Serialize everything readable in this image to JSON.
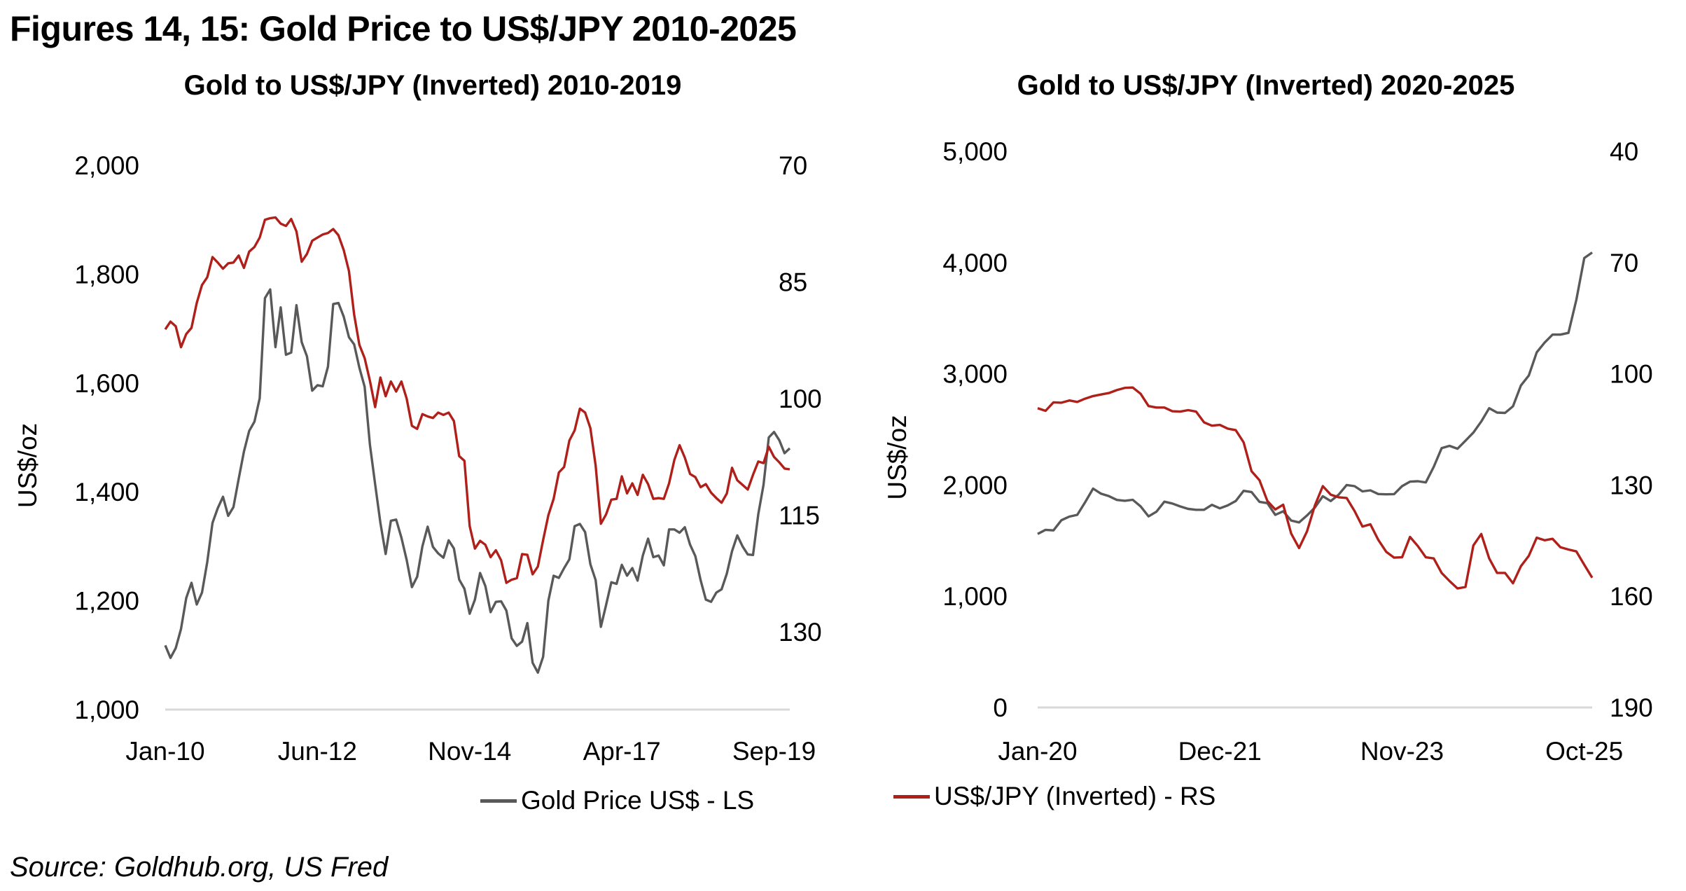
{
  "title": "Figures 14, 15: Gold Price to US$/JPY 2010-2025",
  "source": "Source: Goldhub.org, US Fred",
  "colors": {
    "gold": "#595959",
    "usdjpy": "#B0201A",
    "baseline": "#D9D9D9"
  },
  "legend": [
    {
      "label": "Gold Price US$ - LS",
      "color": "#595959"
    },
    {
      "label": "US$/JPY (Inverted) - RS",
      "color": "#B0201A"
    }
  ],
  "chart_data": [
    {
      "type": "line",
      "title": "Gold to US$/JPY (Inverted) 2010-2019",
      "xlabel": "",
      "ylabel": "US$/oz",
      "y2label": "",
      "frequency": "monthly",
      "start": "Jan-10",
      "x_tick_labels": [
        "Jan-10",
        "Jun-12",
        "Nov-14",
        "Apr-17",
        "Sep-19"
      ],
      "x_tick_indices": [
        0,
        29,
        58,
        87,
        116
      ],
      "ylim": [
        1000,
        2000
      ],
      "y_ticks": [
        1000,
        1200,
        1400,
        1600,
        1800,
        2000
      ],
      "y_tick_labels": [
        "1,000",
        "1,200",
        "1,400",
        "1,600",
        "1,800",
        "2,000"
      ],
      "y2lim": [
        70,
        140
      ],
      "y2_inverted": true,
      "y2_ticks": [
        70,
        85,
        100,
        115,
        130
      ],
      "y2_tick_labels": [
        "70",
        "85",
        "100",
        "115",
        "130"
      ],
      "grid": false,
      "legend_position": "bottom",
      "series": [
        {
          "name": "Gold Price US$ - LS",
          "axis": "left",
          "values": [
            1118,
            1095,
            1113,
            1148,
            1205,
            1233,
            1193,
            1215,
            1271,
            1343,
            1370,
            1391,
            1356,
            1372,
            1424,
            1474,
            1512,
            1529,
            1572,
            1756,
            1772,
            1666,
            1739,
            1652,
            1656,
            1743,
            1675,
            1649,
            1586,
            1596,
            1594,
            1630,
            1745,
            1747,
            1722,
            1684,
            1671,
            1628,
            1593,
            1487,
            1414,
            1343,
            1286,
            1347,
            1349,
            1316,
            1275,
            1225,
            1244,
            1300,
            1336,
            1299,
            1287,
            1279,
            1311,
            1296,
            1239,
            1222,
            1176,
            1202,
            1251,
            1227,
            1179,
            1198,
            1199,
            1182,
            1131,
            1117,
            1125,
            1159,
            1086,
            1068,
            1097,
            1200,
            1246,
            1242,
            1260,
            1276,
            1337,
            1341,
            1326,
            1267,
            1238,
            1152,
            1192,
            1234,
            1231,
            1266,
            1246,
            1260,
            1237,
            1283,
            1314,
            1280,
            1283,
            1265,
            1331,
            1331,
            1325,
            1335,
            1303,
            1282,
            1238,
            1202,
            1198,
            1215,
            1221,
            1250,
            1291,
            1320,
            1300,
            1285,
            1284,
            1359,
            1413,
            1500,
            1510,
            1495,
            1471,
            1480
          ]
        },
        {
          "name": "US$/JPY (Inverted) - RS",
          "axis": "right",
          "values": [
            91.1,
            90.1,
            90.7,
            93.4,
            91.7,
            90.9,
            87.7,
            85.4,
            84.4,
            81.8,
            82.5,
            83.3,
            82.6,
            82.5,
            81.6,
            83.2,
            81.1,
            80.5,
            79.3,
            77.0,
            76.8,
            76.7,
            77.5,
            77.8,
            76.9,
            78.5,
            82.4,
            81.4,
            79.7,
            79.3,
            78.9,
            78.7,
            78.2,
            79.0,
            80.9,
            83.6,
            89.2,
            93.1,
            94.8,
            97.7,
            101.1,
            97.3,
            99.7,
            97.8,
            99.1,
            97.8,
            100.0,
            103.5,
            103.9,
            102.0,
            102.3,
            102.5,
            101.8,
            102.1,
            101.8,
            102.9,
            107.4,
            108.0,
            116.4,
            119.3,
            118.3,
            118.8,
            120.4,
            119.5,
            120.8,
            123.7,
            123.3,
            123.1,
            120.0,
            120.1,
            122.6,
            121.6,
            118.2,
            115.0,
            112.9,
            109.5,
            108.8,
            105.4,
            104.1,
            101.3,
            101.8,
            103.8,
            108.6,
            116.1,
            114.9,
            113.0,
            112.9,
            110.0,
            112.2,
            110.9,
            112.4,
            109.8,
            111.0,
            112.9,
            112.8,
            112.9,
            110.9,
            107.9,
            106.0,
            107.6,
            109.7,
            110.1,
            111.4,
            111.0,
            112.1,
            112.8,
            113.4,
            112.2,
            108.9,
            110.5,
            111.1,
            111.7,
            109.8,
            108.1,
            108.3,
            106.2,
            107.5,
            108.2,
            109.0,
            109.1
          ]
        }
      ]
    },
    {
      "type": "line",
      "title": "Gold to US$/JPY (Inverted) 2020-2025",
      "xlabel": "",
      "ylabel": "US$/oz",
      "y2label": "",
      "frequency": "monthly",
      "start": "Jan-20",
      "x_tick_labels": [
        "Jan-20",
        "Dec-21",
        "Nov-23",
        "Oct-25"
      ],
      "x_tick_indices": [
        0,
        23,
        46,
        69
      ],
      "ylim": [
        0,
        5000
      ],
      "y_ticks": [
        0,
        1000,
        2000,
        3000,
        4000,
        5000
      ],
      "y_tick_labels": [
        "0",
        "1,000",
        "2,000",
        "3,000",
        "4,000",
        "5,000"
      ],
      "y2lim": [
        40,
        190
      ],
      "y2_inverted": true,
      "y2_ticks": [
        40,
        70,
        100,
        130,
        160,
        190
      ],
      "y2_tick_labels": [
        "40",
        "70",
        "100",
        "130",
        "160",
        "190"
      ],
      "grid": false,
      "legend_position": "bottom",
      "series": [
        {
          "name": "Gold Price US$ - LS",
          "axis": "left",
          "values": [
            1560,
            1597,
            1592,
            1683,
            1716,
            1732,
            1846,
            1968,
            1922,
            1900,
            1866,
            1858,
            1867,
            1808,
            1718,
            1760,
            1850,
            1834,
            1807,
            1785,
            1777,
            1777,
            1822,
            1790,
            1817,
            1856,
            1948,
            1937,
            1849,
            1837,
            1732,
            1764,
            1681,
            1664,
            1726,
            1798,
            1899,
            1856,
            1913,
            2000,
            1990,
            1943,
            1952,
            1919,
            1916,
            1918,
            1990,
            2030,
            2034,
            2023,
            2163,
            2331,
            2352,
            2326,
            2398,
            2471,
            2571,
            2690,
            2651,
            2648,
            2708,
            2895,
            2984,
            3193,
            3280,
            3352,
            3352,
            3368,
            3665,
            4040,
            4090
          ]
        },
        {
          "name": "US$/JPY (Inverted) - RS",
          "axis": "right",
          "values": [
            109.3,
            110.0,
            107.7,
            107.8,
            107.2,
            107.6,
            106.7,
            106.0,
            105.6,
            105.2,
            104.4,
            103.8,
            103.7,
            105.4,
            108.7,
            109.1,
            109.1,
            110.1,
            110.2,
            109.8,
            110.2,
            113.1,
            114.0,
            113.8,
            114.8,
            115.2,
            118.5,
            126.3,
            128.7,
            134.3,
            136.6,
            135.3,
            143.1,
            147.0,
            142.5,
            135.5,
            130.3,
            132.6,
            133.3,
            133.5,
            137.0,
            141.2,
            140.6,
            144.8,
            148.0,
            149.6,
            149.5,
            144.0,
            146.5,
            149.5,
            149.8,
            153.7,
            155.9,
            157.9,
            157.5,
            146.3,
            143.2,
            149.8,
            153.7,
            153.7,
            156.5,
            151.9,
            149.1,
            144.2,
            144.9,
            144.5,
            146.8,
            147.4,
            147.9,
            151.5,
            155.0
          ]
        }
      ]
    }
  ]
}
